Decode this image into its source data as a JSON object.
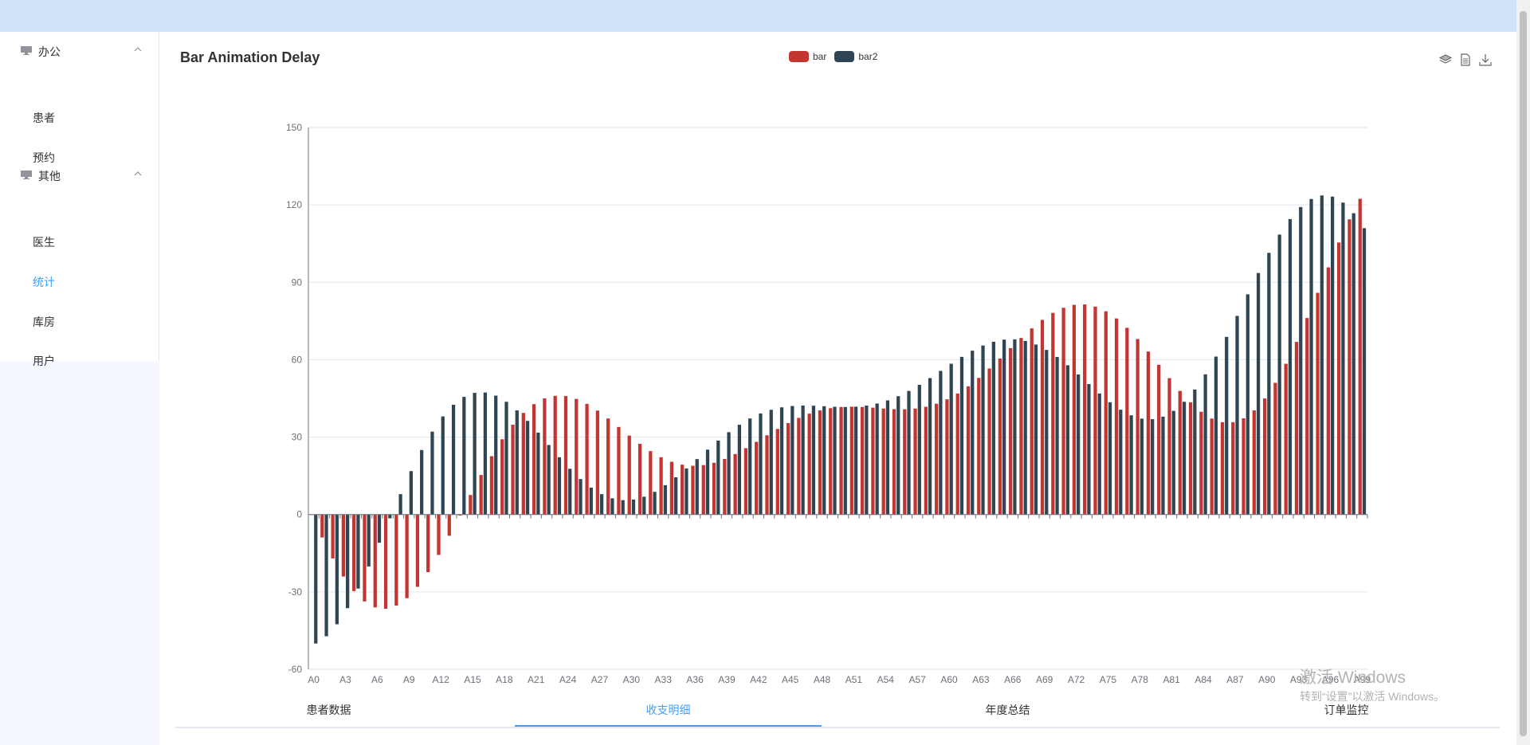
{
  "sidebar": {
    "groups": [
      {
        "label": "办公",
        "items": [
          "患者",
          "预约"
        ]
      },
      {
        "label": "其他",
        "items": [
          "医生",
          "统计",
          "库房",
          "用户"
        ]
      }
    ],
    "active_item": "统计"
  },
  "tabs": [
    {
      "label": "患者数据"
    },
    {
      "label": "收支明细"
    },
    {
      "label": "年度总结"
    },
    {
      "label": "订单监控"
    }
  ],
  "active_tab": "收支明细",
  "watermark": {
    "line1": "激活 Windows",
    "line2": "转到“设置”以激活 Windows。"
  },
  "toolbox": [
    "magic-type-icon",
    "data-view-icon",
    "save-image-icon"
  ],
  "chart_data": {
    "type": "bar",
    "title": "Bar Animation Delay",
    "legend_position": "top-center",
    "grid": true,
    "ylim": [
      -60,
      150
    ],
    "yticks": [
      -60,
      -30,
      0,
      30,
      60,
      90,
      120,
      150
    ],
    "tick_label_step": 3,
    "series": [
      {
        "name": "bar",
        "color": "#c23531",
        "formula": "(sin(i/5)*(i/5-10)+i/6)*5"
      },
      {
        "name": "bar2",
        "color": "#2f4554",
        "formula": "(cos(i/5)*(i/5-10)+i/6)*5"
      }
    ],
    "categories_prefix": "A",
    "categories_count": 100
  }
}
